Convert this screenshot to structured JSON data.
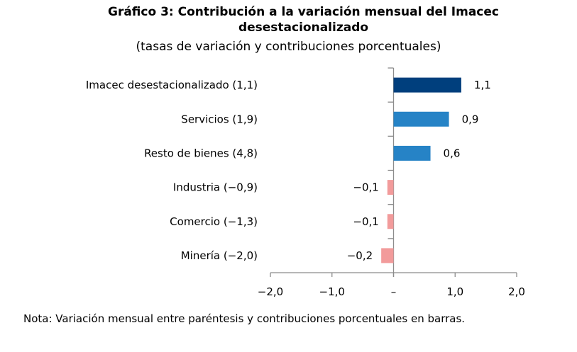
{
  "chart_data": {
    "type": "bar",
    "orientation": "horizontal",
    "title": "Gráfico 3: Contribución a la variación mensual del Imacec desestacionalizado",
    "title_lines": [
      "Gráfico 3: Contribución a la variación mensual del Imacec",
      "desestacionalizado"
    ],
    "subtitle": "(tasas de variación y contribuciones porcentuales)",
    "xlabel": "",
    "ylabel": "",
    "xlim": [
      -2.0,
      2.0
    ],
    "xticks": [
      -2.0,
      -1.0,
      0,
      1.0,
      2.0
    ],
    "xtick_labels": [
      "−2,0",
      "−1,0",
      "–",
      "1,0",
      "2,0"
    ],
    "grid": false,
    "legend": null,
    "categories": [
      "Imacec desestacionalizado (1,1)",
      "Servicios (1,9)",
      "Resto de bienes (4,8)",
      "Industria (−0,9)",
      "Comercio (−1,3)",
      "Minería (−2,0)"
    ],
    "values": [
      1.1,
      0.9,
      0.6,
      -0.1,
      -0.1,
      -0.2
    ],
    "data_labels": [
      "1,1",
      "0,9",
      "0,6",
      "−0,1",
      "−0,1",
      "−0,2"
    ],
    "colors": [
      "#003F7D",
      "#2683C6",
      "#2683C6",
      "#F29B9B",
      "#F29B9B",
      "#F29B9B"
    ],
    "note": "Nota: Variación mensual entre paréntesis y contribuciones porcentuales en barras."
  }
}
